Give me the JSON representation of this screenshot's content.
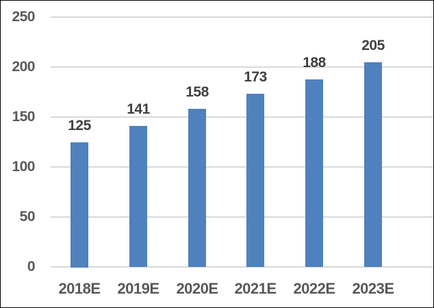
{
  "chart_data": {
    "type": "bar",
    "title": "",
    "categories": [
      "2018E",
      "2019E",
      "2020E",
      "2021E",
      "2022E",
      "2023E"
    ],
    "values": [
      125,
      141,
      158,
      173,
      188,
      205
    ],
    "data_labels": [
      "125",
      "141",
      "158",
      "173",
      "188",
      "205"
    ],
    "y_ticks": [
      0,
      50,
      100,
      150,
      200,
      250
    ],
    "ylim": [
      0,
      250
    ],
    "xlabel": "",
    "ylabel": "",
    "grid": true,
    "legend_position": "none",
    "colors": {
      "bar": "#4F81BD",
      "data_label": "#404040",
      "axis_tick_label": "#595959",
      "gridline": "#D9D9D9",
      "axis_line": "#D9D9D9",
      "background": "#FFFFFF",
      "frame_border": "#000000"
    }
  }
}
